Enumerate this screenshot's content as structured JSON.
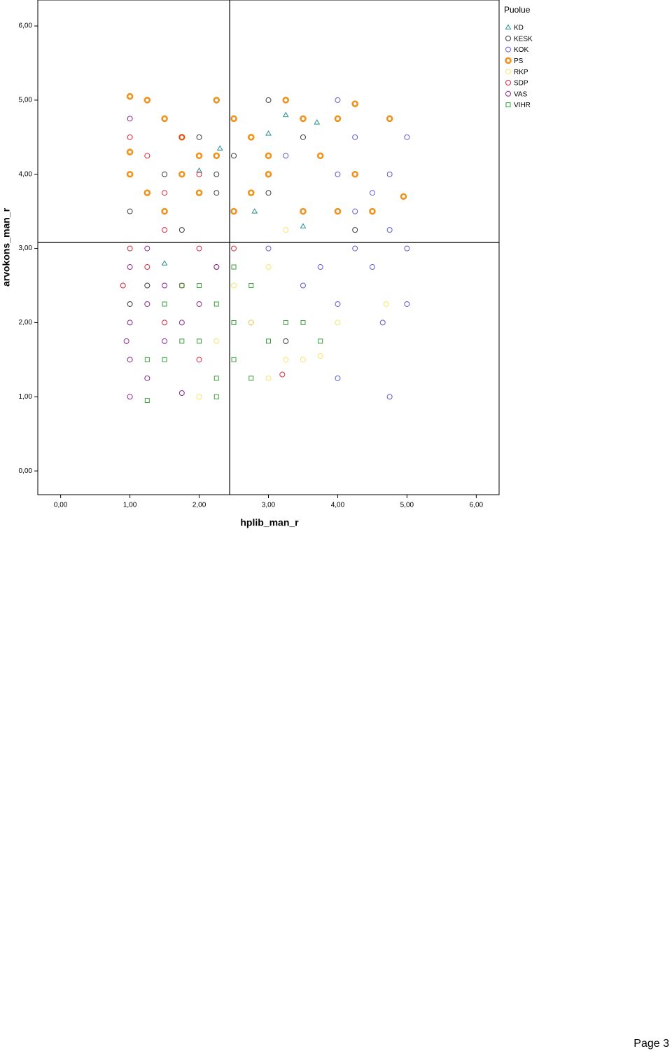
{
  "chart_data": {
    "type": "scatter",
    "x_label": "hplib_man_r",
    "y_label": "arvokons_man_r",
    "legend_title": "Puolue",
    "legend": "top-right",
    "xlim": [
      -0.33,
      6.33
    ],
    "ylim": [
      -0.32,
      6.35
    ],
    "xticks": [
      {
        "value": 0,
        "label": "0,00"
      },
      {
        "value": 1,
        "label": "1,00"
      },
      {
        "value": 2,
        "label": "2,00"
      },
      {
        "value": 3,
        "label": "3,00"
      },
      {
        "value": 4,
        "label": "4,00"
      },
      {
        "value": 5,
        "label": "5,00"
      },
      {
        "value": 6,
        "label": "6,00"
      }
    ],
    "yticks": [
      {
        "value": 0,
        "label": "0,00"
      },
      {
        "value": 1,
        "label": "1,00"
      },
      {
        "value": 2,
        "label": "2,00"
      },
      {
        "value": 3,
        "label": "3,00"
      },
      {
        "value": 4,
        "label": "4,00"
      },
      {
        "value": 5,
        "label": "5,00"
      },
      {
        "value": 6,
        "label": "6,00"
      }
    ],
    "reference_lines": {
      "x": 2.44,
      "y": 3.08
    },
    "series": [
      {
        "name": "KD",
        "color": "#2a8f8f",
        "marker": "triangle",
        "x": [
          2.3,
          3.25,
          3.7,
          2.0,
          3.5,
          1.5,
          2.8,
          3.0
        ],
        "y": [
          4.35,
          4.8,
          4.7,
          4.05,
          3.3,
          2.8,
          3.5,
          4.55
        ]
      },
      {
        "name": "KESK",
        "color": "#3a3a3a",
        "marker": "circle",
        "x": [
          1.0,
          1.5,
          2.0,
          2.25,
          2.5,
          3.0,
          3.5,
          1.75,
          1.0,
          2.75,
          3.25,
          4.25,
          2.25,
          1.25,
          3.0
        ],
        "y": [
          3.5,
          4.0,
          4.5,
          3.75,
          4.25,
          3.75,
          4.5,
          3.25,
          2.25,
          2.0,
          1.75,
          3.25,
          4.0,
          2.5,
          5.0
        ]
      },
      {
        "name": "KOK",
        "color": "#5a5ad6",
        "marker": "circle",
        "x": [
          3.5,
          4.0,
          4.5,
          5.0,
          4.25,
          3.75,
          4.0,
          4.75,
          5.0,
          4.25,
          4.75,
          3.0,
          3.25,
          4.0,
          5.0,
          4.75,
          4.0,
          4.5,
          3.5,
          4.25,
          4.65
        ],
        "y": [
          3.5,
          4.0,
          3.75,
          4.5,
          3.0,
          2.75,
          2.25,
          3.25,
          3.0,
          4.5,
          4.0,
          3.0,
          4.25,
          5.0,
          2.25,
          1.0,
          1.25,
          2.75,
          2.5,
          3.5,
          2.0
        ]
      },
      {
        "name": "PS",
        "color": "#f0921e",
        "marker": "thick-circle",
        "x": [
          1.0,
          1.25,
          1.5,
          1.75,
          2.0,
          2.25,
          2.5,
          2.75,
          3.0,
          3.25,
          3.5,
          3.75,
          4.0,
          1.0,
          1.25,
          1.5,
          2.0,
          2.5,
          3.0,
          3.5,
          4.0,
          4.25,
          4.5,
          4.75,
          1.0,
          2.25,
          1.75,
          4.95,
          2.75,
          4.25
        ],
        "y": [
          5.05,
          5.0,
          4.75,
          4.5,
          4.25,
          5.0,
          4.75,
          4.5,
          4.25,
          5.0,
          4.75,
          4.25,
          4.75,
          4.0,
          3.75,
          3.5,
          3.75,
          3.5,
          4.0,
          3.5,
          3.5,
          4.0,
          3.5,
          4.75,
          4.3,
          4.25,
          4.0,
          3.7,
          3.75,
          4.95
        ]
      },
      {
        "name": "RKP",
        "color": "#f5e66b",
        "marker": "circle",
        "x": [
          2.75,
          3.0,
          3.25,
          3.5,
          3.75,
          4.0,
          4.7,
          2.0,
          2.5,
          3.0,
          3.25,
          2.25
        ],
        "y": [
          2.0,
          1.25,
          1.5,
          1.5,
          1.55,
          2.0,
          2.25,
          1.0,
          2.5,
          2.75,
          3.25,
          1.75
        ]
      },
      {
        "name": "SDP",
        "color": "#d8283c",
        "marker": "circle",
        "x": [
          1.0,
          1.25,
          1.5,
          1.75,
          2.0,
          2.25,
          2.5,
          1.25,
          1.5,
          1.75,
          2.0,
          1.0,
          0.9,
          3.2,
          2.0,
          1.5
        ],
        "y": [
          3.0,
          2.75,
          3.25,
          2.5,
          3.0,
          2.75,
          3.0,
          4.25,
          3.75,
          4.5,
          4.0,
          4.5,
          2.5,
          1.3,
          1.5,
          2.0
        ]
      },
      {
        "name": "VAS",
        "color": "#8a2a8a",
        "marker": "circle",
        "x": [
          1.0,
          1.0,
          1.0,
          1.25,
          1.25,
          1.5,
          1.5,
          1.75,
          2.0,
          0.95,
          1.0,
          1.25,
          1.75,
          2.25,
          1.0
        ],
        "y": [
          1.5,
          2.0,
          1.0,
          1.25,
          2.25,
          1.75,
          2.5,
          2.0,
          2.25,
          1.75,
          4.75,
          3.0,
          1.05,
          2.75,
          2.75
        ]
      },
      {
        "name": "VIHR",
        "color": "#3aa03a",
        "marker": "square",
        "x": [
          1.25,
          1.25,
          1.5,
          1.5,
          1.75,
          2.0,
          2.25,
          2.5,
          2.75,
          2.5,
          3.0,
          3.25,
          3.5,
          3.75,
          2.25,
          2.5,
          2.0,
          2.75,
          1.75,
          2.25
        ],
        "y": [
          0.95,
          1.5,
          1.5,
          2.25,
          1.75,
          2.5,
          2.25,
          2.0,
          1.25,
          1.5,
          1.75,
          2.0,
          2.0,
          1.75,
          1.0,
          2.75,
          1.75,
          2.5,
          2.5,
          1.25
        ]
      }
    ]
  },
  "footer": {
    "page": "Page 3"
  }
}
